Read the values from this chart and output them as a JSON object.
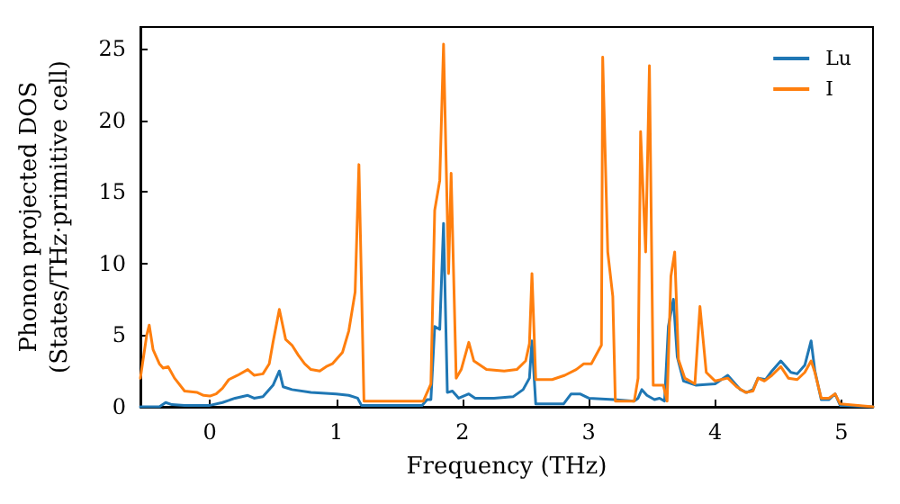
{
  "chart_data": {
    "type": "line",
    "xlabel": "Frequency (THz)",
    "ylabel": "Phonon projected DOS\n(States/THz·primitive cell)",
    "xlim": [
      -0.55,
      5.25
    ],
    "xticks": [
      0,
      1,
      2,
      3,
      4,
      5
    ],
    "ylim": [
      0,
      26.5
    ],
    "yticks": [
      0,
      5,
      10,
      15,
      20,
      25
    ],
    "grid": false,
    "legend": "top right",
    "marker": "none",
    "line_style": "solid",
    "series": [
      {
        "name": "Lu",
        "color": "#1f77b4",
        "x": [
          -0.55,
          -0.4,
          -0.35,
          -0.3,
          -0.2,
          0,
          0.1,
          0.2,
          0.3,
          0.35,
          0.42,
          0.5,
          0.55,
          0.58,
          0.65,
          0.8,
          1.0,
          1.1,
          1.17,
          1.2,
          1.68,
          1.72,
          1.75,
          1.78,
          1.82,
          1.85,
          1.88,
          1.92,
          1.97,
          2.05,
          2.1,
          2.25,
          2.4,
          2.48,
          2.53,
          2.55,
          2.58,
          2.8,
          2.86,
          2.93,
          3.0,
          3.2,
          3.36,
          3.39,
          3.42,
          3.46,
          3.52,
          3.56,
          3.6,
          3.63,
          3.67,
          3.7,
          3.75,
          3.85,
          4.0,
          4.1,
          4.2,
          4.25,
          4.3,
          4.34,
          4.4,
          4.45,
          4.52,
          4.6,
          4.65,
          4.71,
          4.76,
          4.79,
          4.84,
          4.9,
          4.95,
          4.99,
          5.25
        ],
        "values": [
          0,
          0,
          0.3,
          0.15,
          0.1,
          0.1,
          0.3,
          0.6,
          0.8,
          0.6,
          0.7,
          1.5,
          2.5,
          1.4,
          1.2,
          1.0,
          0.9,
          0.8,
          0.6,
          0.1,
          0.1,
          0.5,
          0.5,
          5.6,
          5.4,
          12.8,
          1.0,
          1.1,
          0.6,
          0.9,
          0.6,
          0.6,
          0.7,
          1.2,
          2.0,
          4.6,
          0.2,
          0.2,
          0.9,
          0.9,
          0.6,
          0.5,
          0.4,
          0.6,
          1.2,
          0.8,
          0.5,
          0.6,
          0.4,
          5.6,
          7.5,
          3.5,
          1.8,
          1.5,
          1.6,
          2.2,
          1.2,
          1.0,
          1.2,
          2.0,
          1.9,
          2.5,
          3.2,
          2.4,
          2.3,
          2.9,
          4.6,
          2.5,
          0.5,
          0.5,
          0.9,
          0.1,
          0
        ]
      },
      {
        "name": "I",
        "color": "#ff7f0e",
        "x": [
          -0.55,
          -0.5,
          -0.48,
          -0.45,
          -0.4,
          -0.37,
          -0.33,
          -0.28,
          -0.2,
          -0.1,
          -0.05,
          0,
          0.05,
          0.1,
          0.15,
          0.22,
          0.3,
          0.35,
          0.42,
          0.47,
          0.5,
          0.55,
          0.6,
          0.65,
          0.7,
          0.75,
          0.8,
          0.87,
          0.92,
          0.97,
          1.05,
          1.1,
          1.15,
          1.18,
          1.22,
          1.69,
          1.75,
          1.78,
          1.82,
          1.85,
          1.89,
          1.91,
          1.95,
          1.99,
          2.05,
          2.09,
          2.14,
          2.19,
          2.33,
          2.43,
          2.5,
          2.53,
          2.55,
          2.58,
          2.71,
          2.81,
          2.9,
          2.96,
          3.02,
          3.1,
          3.11,
          3.15,
          3.19,
          3.21,
          3.36,
          3.39,
          3.41,
          3.45,
          3.48,
          3.51,
          3.59,
          3.62,
          3.65,
          3.68,
          3.71,
          3.76,
          3.84,
          3.88,
          3.93,
          4.0,
          4.1,
          4.17,
          4.24,
          4.3,
          4.34,
          4.39,
          4.45,
          4.52,
          4.58,
          4.65,
          4.71,
          4.76,
          4.79,
          4.84,
          4.9,
          4.95,
          4.99,
          5.25
        ],
        "values": [
          2.0,
          5.0,
          5.7,
          4.0,
          3.0,
          2.7,
          2.8,
          2.0,
          1.1,
          1.0,
          0.8,
          0.75,
          0.9,
          1.3,
          1.9,
          2.2,
          2.6,
          2.2,
          2.3,
          3.0,
          4.5,
          6.8,
          4.7,
          4.3,
          3.6,
          3.0,
          2.6,
          2.5,
          2.8,
          3.0,
          3.8,
          5.3,
          8.0,
          16.9,
          0.4,
          0.4,
          1.6,
          13.7,
          15.8,
          25.3,
          9.3,
          16.3,
          2.0,
          2.6,
          4.5,
          3.2,
          2.9,
          2.6,
          2.5,
          2.6,
          3.2,
          4.4,
          9.3,
          1.9,
          1.9,
          2.2,
          2.6,
          3.0,
          3.0,
          4.3,
          24.4,
          10.8,
          7.7,
          0.4,
          0.4,
          2.0,
          19.2,
          10.8,
          23.8,
          1.5,
          1.5,
          0.4,
          9.1,
          10.8,
          3.3,
          2.0,
          1.6,
          7.0,
          2.4,
          1.8,
          2.0,
          1.4,
          1.0,
          1.1,
          2.0,
          1.8,
          2.2,
          2.8,
          2.0,
          1.9,
          2.4,
          3.2,
          2.4,
          0.6,
          0.6,
          0.9,
          0.2,
          0
        ]
      }
    ]
  }
}
